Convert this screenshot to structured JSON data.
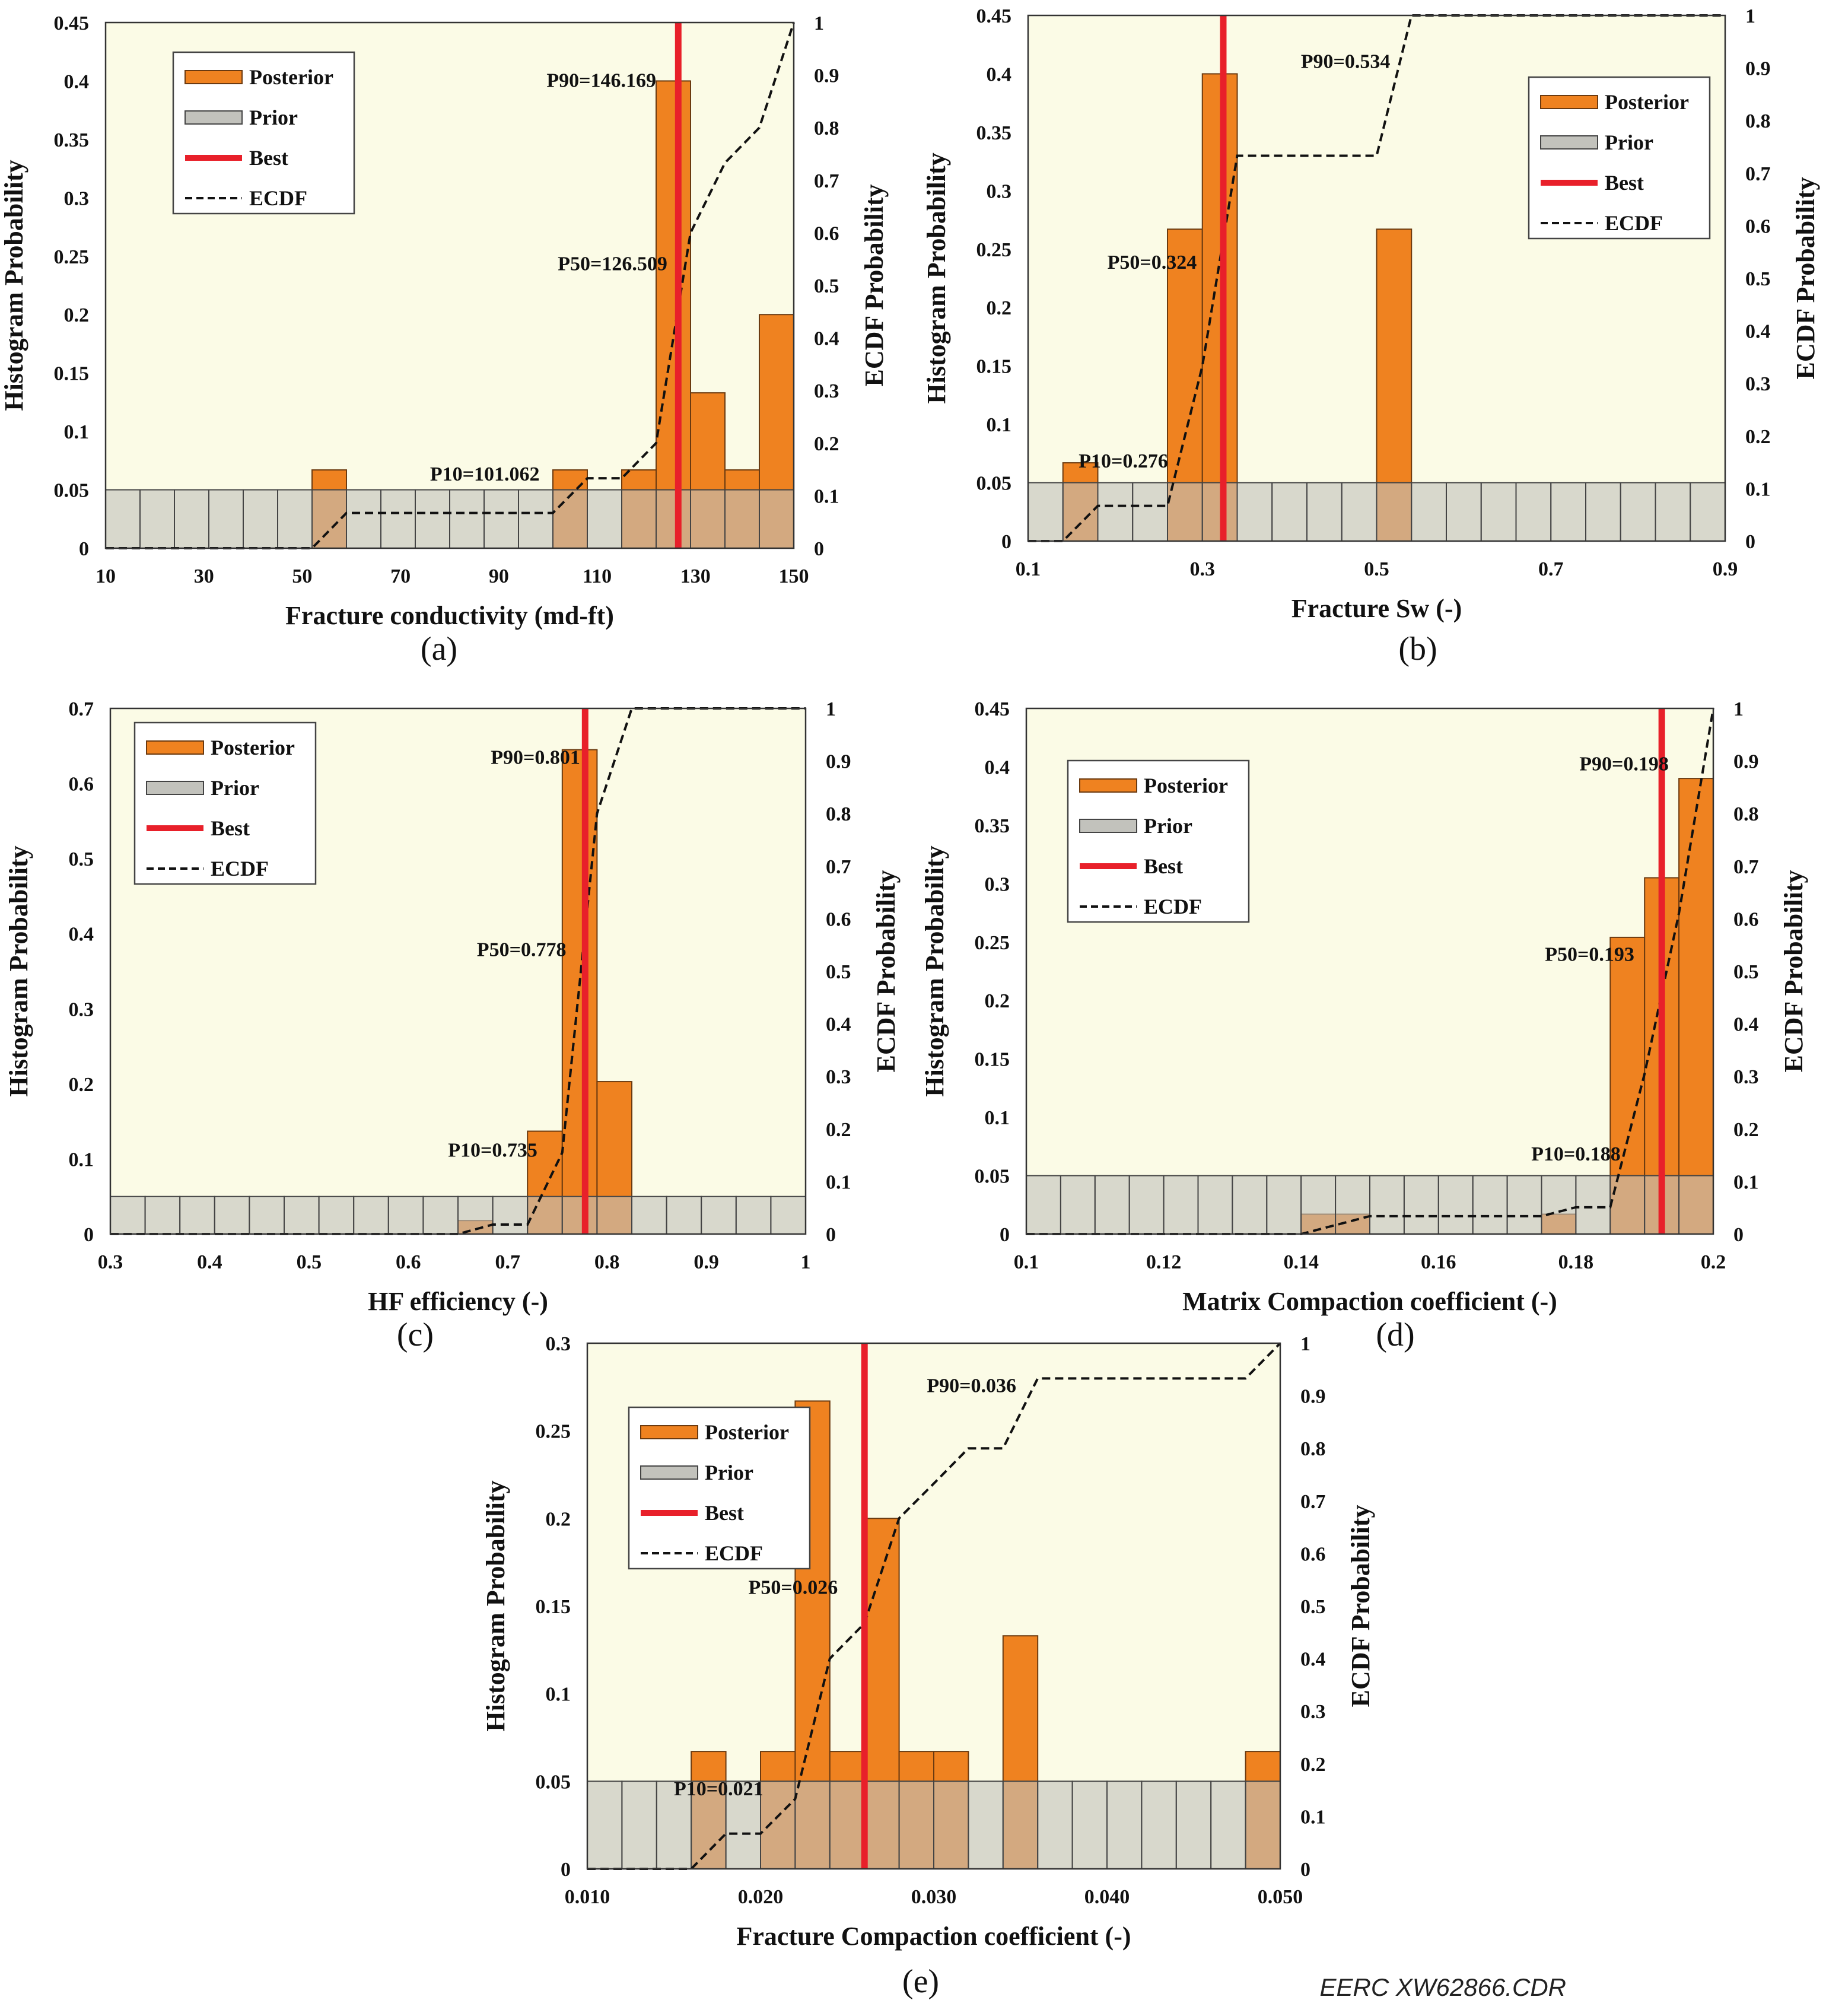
{
  "figure": {
    "watermark": "EERC XW62866.CDR",
    "colors": {
      "plot_bg": "#fbfbe6",
      "posterior": "#ef8220",
      "posterior_edge": "#6b3a10",
      "prior": "#c2c2bc",
      "prior_edge": "#444444",
      "overlap": "#a8744a",
      "best": "#e8202a",
      "ecdf": "#111111",
      "frame": "#333333"
    }
  },
  "chart_data": [
    {
      "id": "a",
      "panel_label": "(a)",
      "type": "bar",
      "xlabel": "Fracture conductivity (md-ft)",
      "ylabel": "Histogram Probability",
      "y2label": "ECDF Probability",
      "xlim": [
        10,
        150
      ],
      "ylim": [
        0,
        0.45
      ],
      "y2lim": [
        0,
        1
      ],
      "xticks": [
        10,
        30,
        50,
        70,
        90,
        110,
        130,
        150
      ],
      "xtick_labels": [
        "10",
        "30",
        "50",
        "70",
        "90",
        "110",
        "130",
        "150"
      ],
      "yticks": [
        0,
        0.05,
        0.1,
        0.15,
        0.2,
        0.25,
        0.3,
        0.35,
        0.4,
        0.45
      ],
      "ytick_labels": [
        "0",
        "0.05",
        "0.1",
        "0.15",
        "0.2",
        "0.25",
        "0.3",
        "0.35",
        "0.4",
        "0.45"
      ],
      "y2ticks": [
        0,
        0.1,
        0.2,
        0.3,
        0.4,
        0.5,
        0.6,
        0.7,
        0.8,
        0.9,
        1
      ],
      "y2tick_labels": [
        "0",
        "0.1",
        "0.2",
        "0.3",
        "0.4",
        "0.5",
        "0.6",
        "0.7",
        "0.8",
        "0.9",
        "1"
      ],
      "bin_edges": [
        10,
        17,
        24,
        31,
        38,
        45,
        52,
        59,
        66,
        73,
        80,
        87,
        94,
        101,
        108,
        115,
        122,
        129,
        136,
        143,
        150
      ],
      "prior": [
        0.05,
        0.05,
        0.05,
        0.05,
        0.05,
        0.05,
        0.05,
        0.05,
        0.05,
        0.05,
        0.05,
        0.05,
        0.05,
        0.05,
        0.05,
        0.05,
        0.05,
        0.05,
        0.05,
        0.05
      ],
      "posterior": [
        0,
        0,
        0,
        0,
        0,
        0,
        0.067,
        0,
        0,
        0,
        0,
        0,
        0,
        0.067,
        0,
        0.067,
        0.4,
        0.133,
        0.067,
        0.2
      ],
      "best": 126.5,
      "ecdf_x": [
        10,
        52,
        59,
        66,
        73,
        80,
        87,
        94,
        101,
        108,
        115,
        122,
        129,
        136,
        143,
        150
      ],
      "ecdf_y": [
        0,
        0,
        0.067,
        0.067,
        0.067,
        0.067,
        0.067,
        0.067,
        0.067,
        0.133,
        0.133,
        0.2,
        0.6,
        0.733,
        0.8,
        1.0
      ],
      "legend": {
        "position": "top-left",
        "entries": [
          "Posterior",
          "Prior",
          "Best",
          "ECDF"
        ]
      },
      "annotations": [
        {
          "text": "P90=146.169",
          "x": 122,
          "y": 0.395,
          "anchor": "end"
        },
        {
          "text": "P50=126.509",
          "x": 102,
          "y": 0.238,
          "anchor": "start"
        },
        {
          "text": "P10=101.062",
          "x": 76,
          "y": 0.058,
          "anchor": "start"
        }
      ]
    },
    {
      "id": "b",
      "panel_label": "(b)",
      "type": "bar",
      "xlabel": "Fracture Sw (-)",
      "ylabel": "Histogram Probability",
      "y2label": "ECDF Probability",
      "xlim": [
        0.1,
        0.9
      ],
      "ylim": [
        0,
        0.45
      ],
      "y2lim": [
        0,
        1
      ],
      "xticks": [
        0.1,
        0.3,
        0.5,
        0.7,
        0.9
      ],
      "xtick_labels": [
        "0.1",
        "0.3",
        "0.5",
        "0.7",
        "0.9"
      ],
      "yticks": [
        0,
        0.05,
        0.1,
        0.15,
        0.2,
        0.25,
        0.3,
        0.35,
        0.4,
        0.45
      ],
      "ytick_labels": [
        "0",
        "0.05",
        "0.1",
        "0.15",
        "0.2",
        "0.25",
        "0.3",
        "0.35",
        "0.4",
        "0.45"
      ],
      "y2ticks": [
        0,
        0.1,
        0.2,
        0.3,
        0.4,
        0.5,
        0.6,
        0.7,
        0.8,
        0.9,
        1
      ],
      "y2tick_labels": [
        "0",
        "0.1",
        "0.2",
        "0.3",
        "0.4",
        "0.5",
        "0.6",
        "0.7",
        "0.8",
        "0.9",
        "1"
      ],
      "bin_edges": [
        0.1,
        0.14,
        0.18,
        0.22,
        0.26,
        0.3,
        0.34,
        0.38,
        0.42,
        0.46,
        0.5,
        0.54,
        0.58,
        0.62,
        0.66,
        0.7,
        0.74,
        0.78,
        0.82,
        0.86,
        0.9
      ],
      "prior": [
        0.05,
        0.05,
        0.05,
        0.05,
        0.05,
        0.05,
        0.05,
        0.05,
        0.05,
        0.05,
        0.05,
        0.05,
        0.05,
        0.05,
        0.05,
        0.05,
        0.05,
        0.05,
        0.05,
        0.05
      ],
      "posterior": [
        0,
        0.067,
        0,
        0,
        0.267,
        0.4,
        0,
        0,
        0,
        0,
        0.267,
        0,
        0,
        0,
        0,
        0,
        0,
        0,
        0,
        0
      ],
      "best": 0.324,
      "ecdf_x": [
        0.1,
        0.14,
        0.18,
        0.22,
        0.26,
        0.3,
        0.34,
        0.38,
        0.42,
        0.46,
        0.5,
        0.54,
        0.9
      ],
      "ecdf_y": [
        0,
        0,
        0.067,
        0.067,
        0.067,
        0.333,
        0.733,
        0.733,
        0.733,
        0.733,
        0.733,
        1.0,
        1.0
      ],
      "legend": {
        "position": "top-right",
        "entries": [
          "Posterior",
          "Prior",
          "Best",
          "ECDF"
        ]
      },
      "annotations": [
        {
          "text": "P90=0.534",
          "x": 0.413,
          "y": 0.405,
          "anchor": "start"
        },
        {
          "text": "P50=0.324",
          "x": 0.191,
          "y": 0.233,
          "anchor": "start"
        },
        {
          "text": "P10=0.276",
          "x": 0.158,
          "y": 0.063,
          "anchor": "start"
        }
      ]
    },
    {
      "id": "c",
      "panel_label": "(c)",
      "type": "bar",
      "xlabel": "HF efficiency (-)",
      "ylabel": "Histogram Probability",
      "y2label": "ECDF Probability",
      "xlim": [
        0.3,
        1.0
      ],
      "ylim": [
        0,
        0.7
      ],
      "y2lim": [
        0,
        1
      ],
      "xticks": [
        0.3,
        0.4,
        0.5,
        0.6,
        0.7,
        0.8,
        0.9,
        1.0
      ],
      "xtick_labels": [
        "0.3",
        "0.4",
        "0.5",
        "0.6",
        "0.7",
        "0.8",
        "0.9",
        "1"
      ],
      "yticks": [
        0,
        0.1,
        0.2,
        0.3,
        0.4,
        0.5,
        0.6,
        0.7
      ],
      "ytick_labels": [
        "0",
        "0.1",
        "0.2",
        "0.3",
        "0.4",
        "0.5",
        "0.6",
        "0.7"
      ],
      "y2ticks": [
        0,
        0.1,
        0.2,
        0.3,
        0.4,
        0.5,
        0.6,
        0.7,
        0.8,
        0.9,
        1
      ],
      "y2tick_labels": [
        "0",
        "0.1",
        "0.2",
        "0.3",
        "0.4",
        "0.5",
        "0.6",
        "0.7",
        "0.8",
        "0.9",
        "1"
      ],
      "bin_edges": [
        0.3,
        0.335,
        0.37,
        0.405,
        0.44,
        0.475,
        0.51,
        0.545,
        0.58,
        0.615,
        0.65,
        0.685,
        0.72,
        0.755,
        0.79,
        0.825,
        0.86,
        0.895,
        0.93,
        0.965,
        1.0
      ],
      "prior": [
        0.05,
        0.05,
        0.05,
        0.05,
        0.05,
        0.05,
        0.05,
        0.05,
        0.05,
        0.05,
        0.05,
        0.05,
        0.05,
        0.05,
        0.05,
        0.05,
        0.05,
        0.05,
        0.05,
        0.05
      ],
      "posterior": [
        0,
        0,
        0,
        0,
        0,
        0,
        0,
        0,
        0,
        0,
        0.018,
        0,
        0.137,
        0.645,
        0.203,
        0,
        0,
        0,
        0,
        0
      ],
      "best": 0.778,
      "ecdf_x": [
        0.3,
        0.65,
        0.685,
        0.72,
        0.755,
        0.79,
        0.825,
        1.0
      ],
      "ecdf_y": [
        0,
        0,
        0.018,
        0.018,
        0.155,
        0.8,
        1.0,
        1.0
      ],
      "legend": {
        "position": "top-left",
        "entries": [
          "Posterior",
          "Prior",
          "Best",
          "ECDF"
        ]
      },
      "annotations": [
        {
          "text": "P90=0.801",
          "x": 0.683,
          "y": 0.626,
          "anchor": "start"
        },
        {
          "text": "P50=0.778",
          "x": 0.669,
          "y": 0.37,
          "anchor": "start"
        },
        {
          "text": "P10=0.735",
          "x": 0.64,
          "y": 0.103,
          "anchor": "start"
        }
      ]
    },
    {
      "id": "d",
      "panel_label": "(d)",
      "type": "bar",
      "xlabel": "Matrix Compaction coefficient (-)",
      "ylabel": "Histogram Probability",
      "y2label": "ECDF Probability",
      "xlim": [
        0.1,
        0.2
      ],
      "ylim": [
        0,
        0.45
      ],
      "y2lim": [
        0,
        1
      ],
      "xticks": [
        0.1,
        0.12,
        0.14,
        0.16,
        0.18,
        0.2
      ],
      "xtick_labels": [
        "0.1",
        "0.12",
        "0.14",
        "0.16",
        "0.18",
        "0.2"
      ],
      "yticks": [
        0,
        0.05,
        0.1,
        0.15,
        0.2,
        0.25,
        0.3,
        0.35,
        0.4,
        0.45
      ],
      "ytick_labels": [
        "0",
        "0.05",
        "0.1",
        "0.15",
        "0.2",
        "0.25",
        "0.3",
        "0.35",
        "0.4",
        "0.45"
      ],
      "y2ticks": [
        0,
        0.1,
        0.2,
        0.3,
        0.4,
        0.5,
        0.6,
        0.7,
        0.8,
        0.9,
        1
      ],
      "y2tick_labels": [
        "0",
        "0.1",
        "0.2",
        "0.3",
        "0.4",
        "0.5",
        "0.6",
        "0.7",
        "0.8",
        "0.9",
        "1"
      ],
      "bin_edges": [
        0.1,
        0.105,
        0.11,
        0.115,
        0.12,
        0.125,
        0.13,
        0.135,
        0.14,
        0.145,
        0.15,
        0.155,
        0.16,
        0.165,
        0.17,
        0.175,
        0.18,
        0.185,
        0.19,
        0.195,
        0.2
      ],
      "prior": [
        0.05,
        0.05,
        0.05,
        0.05,
        0.05,
        0.05,
        0.05,
        0.05,
        0.05,
        0.05,
        0.05,
        0.05,
        0.05,
        0.05,
        0.05,
        0.05,
        0.05,
        0.05,
        0.05,
        0.05
      ],
      "posterior": [
        0,
        0,
        0,
        0,
        0,
        0,
        0,
        0,
        0.017,
        0.017,
        0,
        0,
        0,
        0,
        0,
        0.017,
        0,
        0.254,
        0.305,
        0.39
      ],
      "best": 0.1925,
      "ecdf_x": [
        0.1,
        0.14,
        0.15,
        0.155,
        0.16,
        0.165,
        0.17,
        0.175,
        0.18,
        0.185,
        0.19,
        0.195,
        0.2
      ],
      "ecdf_y": [
        0,
        0,
        0.034,
        0.034,
        0.034,
        0.034,
        0.034,
        0.034,
        0.051,
        0.051,
        0.305,
        0.61,
        1.0
      ],
      "legend": {
        "position": "top-left",
        "entries": [
          "Posterior",
          "Prior",
          "Best",
          "ECDF"
        ]
      },
      "annotations": [
        {
          "text": "P90=0.198",
          "x": 0.1805,
          "y": 0.397,
          "anchor": "start"
        },
        {
          "text": "P50=0.193",
          "x": 0.1755,
          "y": 0.234,
          "anchor": "start"
        },
        {
          "text": "P10=0.188",
          "x": 0.1735,
          "y": 0.063,
          "anchor": "start"
        }
      ]
    },
    {
      "id": "e",
      "panel_label": "(e)",
      "type": "bar",
      "xlabel": "Fracture Compaction coefficient (-)",
      "ylabel": "Histogram Probability",
      "y2label": "ECDF Probability",
      "xlim": [
        0.01,
        0.05
      ],
      "ylim": [
        0,
        0.3
      ],
      "y2lim": [
        0,
        1
      ],
      "xticks": [
        0.01,
        0.02,
        0.03,
        0.04,
        0.05
      ],
      "xtick_labels": [
        "0.010",
        "0.020",
        "0.030",
        "0.040",
        "0.050"
      ],
      "yticks": [
        0,
        0.05,
        0.1,
        0.15,
        0.2,
        0.25,
        0.3
      ],
      "ytick_labels": [
        "0",
        "0.05",
        "0.1",
        "0.15",
        "0.2",
        "0.25",
        "0.3"
      ],
      "y2ticks": [
        0,
        0.1,
        0.2,
        0.3,
        0.4,
        0.5,
        0.6,
        0.7,
        0.8,
        0.9,
        1
      ],
      "y2tick_labels": [
        "0",
        "0.1",
        "0.2",
        "0.3",
        "0.4",
        "0.5",
        "0.6",
        "0.7",
        "0.8",
        "0.9",
        "1"
      ],
      "bin_edges": [
        0.01,
        0.012,
        0.014,
        0.016,
        0.018,
        0.02,
        0.022,
        0.024,
        0.026,
        0.028,
        0.03,
        0.032,
        0.034,
        0.036,
        0.038,
        0.04,
        0.042,
        0.044,
        0.046,
        0.048,
        0.05
      ],
      "prior": [
        0.05,
        0.05,
        0.05,
        0.05,
        0.05,
        0.05,
        0.05,
        0.05,
        0.05,
        0.05,
        0.05,
        0.05,
        0.05,
        0.05,
        0.05,
        0.05,
        0.05,
        0.05,
        0.05,
        0.05
      ],
      "posterior": [
        0,
        0,
        0,
        0.067,
        0,
        0.067,
        0.267,
        0.067,
        0.2,
        0.067,
        0.067,
        0,
        0.133,
        0,
        0,
        0,
        0,
        0,
        0,
        0.067
      ],
      "best": 0.026,
      "ecdf_x": [
        0.01,
        0.016,
        0.018,
        0.02,
        0.022,
        0.024,
        0.026,
        0.028,
        0.03,
        0.032,
        0.034,
        0.036,
        0.038,
        0.04,
        0.042,
        0.044,
        0.046,
        0.048,
        0.05
      ],
      "ecdf_y": [
        0,
        0,
        0.067,
        0.067,
        0.133,
        0.4,
        0.467,
        0.667,
        0.733,
        0.8,
        0.8,
        0.933,
        0.933,
        0.933,
        0.933,
        0.933,
        0.933,
        0.933,
        1.0
      ],
      "legend": {
        "position": "top-left",
        "entries": [
          "Posterior",
          "Prior",
          "Best",
          "ECDF"
        ]
      },
      "annotations": [
        {
          "text": "P90=0.036",
          "x": 0.0296,
          "y": 0.272,
          "anchor": "start"
        },
        {
          "text": "P50=0.026",
          "x": 0.0193,
          "y": 0.157,
          "anchor": "start"
        },
        {
          "text": "P10=0.021",
          "x": 0.015,
          "y": 0.042,
          "anchor": "start"
        }
      ]
    }
  ]
}
